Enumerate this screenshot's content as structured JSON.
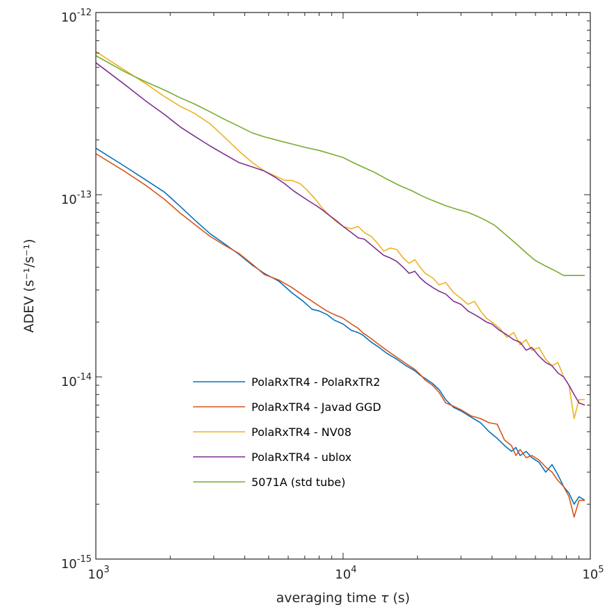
{
  "chart_data": {
    "type": "line",
    "title": "",
    "xlabel": "averaging time",
    "xlabel_symbol": "τ",
    "xlabel_unit": "(s)",
    "ylabel": "ADEV (s⁻¹/s⁻¹)",
    "x_scale": "log",
    "y_scale": "log",
    "xlim": [
      1000,
      100000
    ],
    "ylim": [
      1e-15,
      1e-12
    ],
    "x_ticks": [
      {
        "value": 1000,
        "base": "10",
        "exp": "3"
      },
      {
        "value": 10000,
        "base": "10",
        "exp": "4"
      },
      {
        "value": 100000,
        "base": "10",
        "exp": "5"
      }
    ],
    "y_ticks": [
      {
        "value": 1e-12,
        "base": "10",
        "exp": "-12"
      },
      {
        "value": 1e-13,
        "base": "10",
        "exp": "-13"
      },
      {
        "value": 1e-14,
        "base": "10",
        "exp": "-14"
      },
      {
        "value": 1e-15,
        "base": "10",
        "exp": "-15"
      }
    ],
    "grid": false,
    "legend_position": "bottom-center",
    "series": [
      {
        "name": "PolaRxTR4 - PolaRxTR2",
        "color": "#0072bd",
        "x": [
          1000,
          1300,
          1600,
          1900,
          2200,
          2500,
          2900,
          3300,
          3800,
          4300,
          4800,
          5500,
          6200,
          6900,
          7500,
          8000,
          8600,
          9200,
          10000,
          10800,
          11500,
          12000,
          13000,
          14000,
          15000,
          16500,
          18000,
          19500,
          20500,
          21500,
          23000,
          24500,
          26000,
          28000,
          30000,
          33000,
          36000,
          39000,
          42000,
          45000,
          48000,
          50000,
          52000,
          55000,
          58000,
          62000,
          66000,
          70000,
          74000,
          78000,
          82000,
          86000,
          90000,
          95000
        ],
        "y": [
          1.8e-13,
          1.44e-13,
          1.2e-13,
          1.03e-13,
          8.6e-14,
          7.3e-14,
          6.1e-14,
          5.4e-14,
          4.7e-14,
          4.1e-14,
          3.7e-14,
          3.35e-14,
          2.9e-14,
          2.6e-14,
          2.35e-14,
          2.3e-14,
          2.2e-14,
          2.05e-14,
          1.95e-14,
          1.8e-14,
          1.75e-14,
          1.7e-14,
          1.55e-14,
          1.45e-14,
          1.35e-14,
          1.25e-14,
          1.15e-14,
          1.08e-14,
          1.02e-14,
          9.8e-15,
          9.2e-15,
          8.5e-15,
          7.5e-15,
          6.8e-15,
          6.5e-15,
          6e-15,
          5.6e-15,
          5e-15,
          4.6e-15,
          4.2e-15,
          3.9e-15,
          4.1e-15,
          3.7e-15,
          3.9e-15,
          3.6e-15,
          3.4e-15,
          3e-15,
          3.3e-15,
          2.9e-15,
          2.5e-15,
          2.3e-15,
          2e-15,
          2.2e-15,
          2.1e-15
        ]
      },
      {
        "name": "PolaRxTR4 - Javad GGD",
        "color": "#d95319",
        "x": [
          1000,
          1300,
          1600,
          1900,
          2200,
          2500,
          2900,
          3300,
          3800,
          4300,
          4800,
          5500,
          6200,
          6900,
          7500,
          8000,
          8600,
          9200,
          10000,
          10800,
          11500,
          12000,
          13000,
          14000,
          15000,
          16500,
          18000,
          19500,
          20500,
          21500,
          23000,
          24500,
          26000,
          28000,
          30000,
          33000,
          36000,
          39000,
          42000,
          45000,
          48000,
          50000,
          52000,
          55000,
          58000,
          62000,
          66000,
          70000,
          74000,
          78000,
          82000,
          86000,
          90000,
          95000
        ],
        "y": [
          1.68e-13,
          1.35e-13,
          1.12e-13,
          9.4e-14,
          7.9e-14,
          6.9e-14,
          5.9e-14,
          5.3e-14,
          4.75e-14,
          4.15e-14,
          3.65e-14,
          3.4e-14,
          3.1e-14,
          2.8e-14,
          2.6e-14,
          2.45e-14,
          2.3e-14,
          2.2e-14,
          2.1e-14,
          1.95e-14,
          1.85e-14,
          1.75e-14,
          1.62e-14,
          1.5e-14,
          1.4e-14,
          1.28e-14,
          1.18e-14,
          1.1e-14,
          1.03e-14,
          9.6e-15,
          9e-15,
          8.2e-15,
          7.2e-15,
          6.9e-15,
          6.6e-15,
          6.1e-15,
          5.9e-15,
          5.6e-15,
          5.5e-15,
          4.5e-15,
          4.2e-15,
          3.7e-15,
          4e-15,
          3.6e-15,
          3.7e-15,
          3.5e-15,
          3.2e-15,
          3e-15,
          2.7e-15,
          2.5e-15,
          2.2e-15,
          1.7e-15,
          2.1e-15,
          2.1e-15
        ]
      },
      {
        "name": "PolaRxTR4 - NV08",
        "color": "#edb120",
        "x": [
          1000,
          1300,
          1600,
          1900,
          2200,
          2500,
          2900,
          3300,
          3800,
          4300,
          4800,
          5300,
          5800,
          6200,
          6700,
          7200,
          7700,
          8200,
          8800,
          9400,
          10000,
          10800,
          11500,
          12200,
          13000,
          13800,
          14600,
          15500,
          16500,
          17500,
          18500,
          19500,
          20500,
          21500,
          23000,
          24500,
          26000,
          28000,
          30000,
          32000,
          34000,
          36000,
          38000,
          40000,
          43000,
          46000,
          49000,
          52000,
          55000,
          58000,
          62000,
          66000,
          70000,
          74000,
          78000,
          82000,
          86000,
          90000,
          95000
        ],
        "y": [
          6.1e-13,
          4.85e-13,
          4.05e-13,
          3.45e-13,
          3.05e-13,
          2.8e-13,
          2.45e-13,
          2.08e-13,
          1.73e-13,
          1.5e-13,
          1.35e-13,
          1.27e-13,
          1.2e-13,
          1.2e-13,
          1.15e-13,
          1.05e-13,
          9.5e-14,
          8.5e-14,
          7.7e-14,
          7.1e-14,
          6.7e-14,
          6.5e-14,
          6.7e-14,
          6.2e-14,
          5.9e-14,
          5.4e-14,
          4.9e-14,
          5.1e-14,
          5e-14,
          4.5e-14,
          4.2e-14,
          4.4e-14,
          4e-14,
          3.7e-14,
          3.5e-14,
          3.2e-14,
          3.3e-14,
          2.9e-14,
          2.7e-14,
          2.5e-14,
          2.6e-14,
          2.3e-14,
          2.1e-14,
          2e-14,
          1.85e-14,
          1.65e-14,
          1.75e-14,
          1.5e-14,
          1.6e-14,
          1.4e-14,
          1.45e-14,
          1.25e-14,
          1.15e-14,
          1.2e-14,
          1e-14,
          9e-15,
          5.9e-15,
          7.5e-15,
          7.5e-15
        ]
      },
      {
        "name": "PolaRxTR4 - ublox",
        "color": "#7e2f8e",
        "x": [
          1000,
          1300,
          1600,
          1900,
          2200,
          2500,
          2900,
          3300,
          3800,
          4300,
          4800,
          5300,
          5800,
          6300,
          6800,
          7300,
          7800,
          8300,
          8800,
          9400,
          10000,
          10800,
          11500,
          12200,
          13000,
          13800,
          14600,
          15500,
          16500,
          17500,
          18500,
          19500,
          20500,
          21500,
          23000,
          24500,
          26000,
          28000,
          30000,
          32000,
          34000,
          36000,
          38000,
          40000,
          43000,
          46000,
          49000,
          52000,
          55000,
          58000,
          62000,
          66000,
          70000,
          74000,
          78000,
          82000,
          86000,
          90000,
          95000
        ],
        "y": [
          5.3e-13,
          4.05e-13,
          3.25e-13,
          2.75e-13,
          2.35e-13,
          2.1e-13,
          1.85e-13,
          1.67e-13,
          1.5e-13,
          1.42e-13,
          1.35e-13,
          1.25e-13,
          1.15e-13,
          1.05e-13,
          9.8e-14,
          9.2e-14,
          8.7e-14,
          8.2e-14,
          7.7e-14,
          7.2e-14,
          6.7e-14,
          6.2e-14,
          5.8e-14,
          5.7e-14,
          5.3e-14,
          4.95e-14,
          4.65e-14,
          4.5e-14,
          4.3e-14,
          4e-14,
          3.7e-14,
          3.8e-14,
          3.5e-14,
          3.3e-14,
          3.1e-14,
          2.95e-14,
          2.85e-14,
          2.6e-14,
          2.5e-14,
          2.3e-14,
          2.2e-14,
          2.1e-14,
          2e-14,
          1.95e-14,
          1.8e-14,
          1.7e-14,
          1.6e-14,
          1.55e-14,
          1.4e-14,
          1.45e-14,
          1.3e-14,
          1.2e-14,
          1.15e-14,
          1.05e-14,
          1e-14,
          9e-15,
          8e-15,
          7.2e-15,
          7e-15
        ]
      },
      {
        "name": "5071A (std tube)",
        "color": "#77ac30",
        "x": [
          1000,
          1300,
          1600,
          1900,
          2200,
          2500,
          2900,
          3300,
          3800,
          4300,
          4800,
          5500,
          6200,
          7000,
          8000,
          9000,
          10000,
          11000,
          12000,
          13500,
          15000,
          17000,
          19000,
          21000,
          23000,
          26000,
          29000,
          32000,
          35000,
          38000,
          41000,
          45000,
          50000,
          55000,
          60000,
          65000,
          70000,
          74000,
          78000,
          82000,
          86000,
          90000,
          95000
        ],
        "y": [
          5.8e-13,
          4.75e-13,
          4.15e-13,
          3.75e-13,
          3.4e-13,
          3.15e-13,
          2.85e-13,
          2.6e-13,
          2.37e-13,
          2.18e-13,
          2.08e-13,
          1.98e-13,
          1.9e-13,
          1.82e-13,
          1.75e-13,
          1.67e-13,
          1.6e-13,
          1.5e-13,
          1.42e-13,
          1.32e-13,
          1.22e-13,
          1.12e-13,
          1.05e-13,
          9.8e-14,
          9.3e-14,
          8.7e-14,
          8.3e-14,
          8e-14,
          7.6e-14,
          7.2e-14,
          6.8e-14,
          6.1e-14,
          5.4e-14,
          4.8e-14,
          4.35e-14,
          4.1e-14,
          3.9e-14,
          3.75e-14,
          3.6e-14,
          3.6e-14,
          3.6e-14,
          3.6e-14,
          3.6e-14
        ]
      }
    ]
  }
}
